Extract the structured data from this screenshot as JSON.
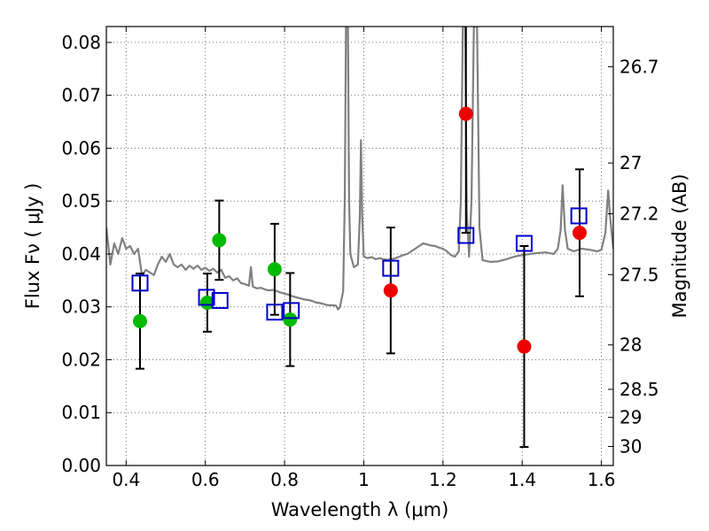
{
  "chart_data": {
    "type": "scatter",
    "title": "",
    "xlabel": "Wavelength  λ (μm)",
    "ylabel": "Flux  Fν  ( μJy )",
    "y2label": "Magnitude (AB)",
    "xlim": [
      0.35,
      1.63
    ],
    "ylim": [
      0.0,
      0.083
    ],
    "grid": true,
    "x_ticks": [
      0.4,
      0.6,
      0.8,
      1.0,
      1.2,
      1.4,
      1.6
    ],
    "x_tick_labels": [
      "0.4",
      "0.6",
      "0.8",
      "1",
      "1.2",
      "1.4",
      "1.6"
    ],
    "y_ticks": [
      0.0,
      0.01,
      0.02,
      0.03,
      0.04,
      0.05,
      0.06,
      0.07,
      0.08
    ],
    "y_tick_labels": [
      "0.00",
      "0.01",
      "0.02",
      "0.03",
      "0.04",
      "0.05",
      "0.06",
      "0.07",
      "0.08"
    ],
    "y2_tick_labels": [
      {
        "label": "26.7",
        "flux": 0.0754
      },
      {
        "label": "27",
        "flux": 0.0572
      },
      {
        "label": "27.2",
        "flux": 0.0476
      },
      {
        "label": "27.5",
        "flux": 0.0361
      },
      {
        "label": "28",
        "flux": 0.0228
      },
      {
        "label": "28.5",
        "flux": 0.0144
      },
      {
        "label": "29",
        "flux": 0.0091
      },
      {
        "label": "30",
        "flux": 0.0036
      }
    ],
    "series": [
      {
        "marker": "circle",
        "color": "#00bb00",
        "points": [
          {
            "x": 0.435,
            "y": 0.0273,
            "err": 0.009
          },
          {
            "x": 0.605,
            "y": 0.0308,
            "err": 0.0055
          },
          {
            "x": 0.635,
            "y": 0.0426,
            "err": 0.0075
          },
          {
            "x": 0.775,
            "y": 0.0371,
            "err": 0.0086
          },
          {
            "x": 0.814,
            "y": 0.0276,
            "err": 0.0088
          }
        ]
      },
      {
        "marker": "circle",
        "color": "#ee0000",
        "points": [
          {
            "x": 1.068,
            "y": 0.0331,
            "err": 0.0119
          },
          {
            "x": 1.258,
            "y": 0.0665,
            "err": 0.0225
          },
          {
            "x": 1.405,
            "y": 0.0225,
            "err": 0.019
          },
          {
            "x": 1.545,
            "y": 0.044,
            "err": 0.012
          }
        ]
      },
      {
        "marker": "open-square",
        "color": "#0000cc",
        "points": [
          {
            "x": 0.435,
            "y": 0.0345
          },
          {
            "x": 0.603,
            "y": 0.0318
          },
          {
            "x": 0.637,
            "y": 0.0312
          },
          {
            "x": 0.775,
            "y": 0.029
          },
          {
            "x": 0.817,
            "y": 0.0293
          },
          {
            "x": 1.068,
            "y": 0.0373
          },
          {
            "x": 1.258,
            "y": 0.0435
          },
          {
            "x": 1.405,
            "y": 0.042
          },
          {
            "x": 1.543,
            "y": 0.0472
          }
        ]
      },
      {
        "marker": "line",
        "color": "#808080",
        "points": [
          [
            0.35,
            0.045
          ],
          [
            0.36,
            0.038
          ],
          [
            0.37,
            0.042
          ],
          [
            0.38,
            0.04
          ],
          [
            0.39,
            0.043
          ],
          [
            0.4,
            0.041
          ],
          [
            0.41,
            0.0415
          ],
          [
            0.42,
            0.04
          ],
          [
            0.43,
            0.041
          ],
          [
            0.44,
            0.036
          ],
          [
            0.45,
            0.037
          ],
          [
            0.46,
            0.0365
          ],
          [
            0.47,
            0.036
          ],
          [
            0.48,
            0.038
          ],
          [
            0.49,
            0.0395
          ],
          [
            0.5,
            0.0385
          ],
          [
            0.51,
            0.04
          ],
          [
            0.52,
            0.038
          ],
          [
            0.53,
            0.0375
          ],
          [
            0.54,
            0.038
          ],
          [
            0.55,
            0.037
          ],
          [
            0.56,
            0.0378
          ],
          [
            0.57,
            0.0372
          ],
          [
            0.58,
            0.0378
          ],
          [
            0.59,
            0.037
          ],
          [
            0.6,
            0.0374
          ],
          [
            0.61,
            0.0368
          ],
          [
            0.62,
            0.0372
          ],
          [
            0.63,
            0.0365
          ],
          [
            0.64,
            0.037
          ],
          [
            0.65,
            0.0355
          ],
          [
            0.66,
            0.0358
          ],
          [
            0.67,
            0.035
          ],
          [
            0.68,
            0.0354
          ],
          [
            0.69,
            0.0345
          ],
          [
            0.7,
            0.0343
          ],
          [
            0.71,
            0.034
          ],
          [
            0.715,
            0.0375
          ],
          [
            0.72,
            0.0338
          ],
          [
            0.73,
            0.0335
          ],
          [
            0.74,
            0.0336
          ],
          [
            0.75,
            0.0333
          ],
          [
            0.76,
            0.0331
          ],
          [
            0.77,
            0.0332
          ],
          [
            0.78,
            0.033
          ],
          [
            0.79,
            0.0327
          ],
          [
            0.8,
            0.0325
          ],
          [
            0.81,
            0.0323
          ],
          [
            0.82,
            0.032
          ],
          [
            0.83,
            0.0318
          ],
          [
            0.84,
            0.0316
          ],
          [
            0.85,
            0.0314
          ],
          [
            0.86,
            0.0313
          ],
          [
            0.87,
            0.0311
          ],
          [
            0.88,
            0.0308
          ],
          [
            0.89,
            0.0307
          ],
          [
            0.9,
            0.0305
          ],
          [
            0.91,
            0.0303
          ],
          [
            0.92,
            0.0303
          ],
          [
            0.93,
            0.0302
          ],
          [
            0.935,
            0.0295
          ],
          [
            0.94,
            0.03
          ],
          [
            0.948,
            0.033
          ],
          [
            0.952,
            0.05
          ],
          [
            0.955,
            0.083
          ],
          [
            0.96,
            0.083
          ],
          [
            0.963,
            0.05
          ],
          [
            0.966,
            0.04
          ],
          [
            0.975,
            0.0375
          ],
          [
            0.985,
            0.038
          ],
          [
            0.99,
            0.047
          ],
          [
            0.993,
            0.0615
          ],
          [
            0.996,
            0.047
          ],
          [
            1.0,
            0.0395
          ],
          [
            1.01,
            0.0392
          ],
          [
            1.02,
            0.0394
          ],
          [
            1.03,
            0.039
          ],
          [
            1.04,
            0.0392
          ],
          [
            1.05,
            0.039
          ],
          [
            1.06,
            0.0389
          ],
          [
            1.07,
            0.039
          ],
          [
            1.08,
            0.0392
          ],
          [
            1.09,
            0.0395
          ],
          [
            1.1,
            0.0398
          ],
          [
            1.11,
            0.04
          ],
          [
            1.12,
            0.0405
          ],
          [
            1.13,
            0.041
          ],
          [
            1.14,
            0.0415
          ],
          [
            1.15,
            0.042
          ],
          [
            1.16,
            0.0418
          ],
          [
            1.17,
            0.0416
          ],
          [
            1.18,
            0.0415
          ],
          [
            1.19,
            0.0412
          ],
          [
            1.2,
            0.041
          ],
          [
            1.21,
            0.0405
          ],
          [
            1.22,
            0.0398
          ],
          [
            1.23,
            0.0395
          ],
          [
            1.24,
            0.0405
          ],
          [
            1.245,
            0.05
          ],
          [
            1.25,
            0.083
          ],
          [
            1.256,
            0.083
          ],
          [
            1.26,
            0.048
          ],
          [
            1.266,
            0.0395
          ],
          [
            1.272,
            0.05
          ],
          [
            1.278,
            0.083
          ],
          [
            1.286,
            0.083
          ],
          [
            1.292,
            0.045
          ],
          [
            1.3,
            0.0388
          ],
          [
            1.32,
            0.0385
          ],
          [
            1.34,
            0.0386
          ],
          [
            1.36,
            0.039
          ],
          [
            1.38,
            0.0395
          ],
          [
            1.4,
            0.0398
          ],
          [
            1.42,
            0.04
          ],
          [
            1.44,
            0.0402
          ],
          [
            1.46,
            0.0403
          ],
          [
            1.48,
            0.04
          ],
          [
            1.49,
            0.041
          ],
          [
            1.497,
            0.0445
          ],
          [
            1.502,
            0.053
          ],
          [
            1.508,
            0.0445
          ],
          [
            1.515,
            0.041
          ],
          [
            1.53,
            0.0405
          ],
          [
            1.55,
            0.041
          ],
          [
            1.57,
            0.0408
          ],
          [
            1.59,
            0.0405
          ],
          [
            1.6,
            0.0408
          ],
          [
            1.61,
            0.044
          ],
          [
            1.617,
            0.052
          ],
          [
            1.622,
            0.047
          ],
          [
            1.63,
            0.041
          ]
        ]
      }
    ]
  }
}
